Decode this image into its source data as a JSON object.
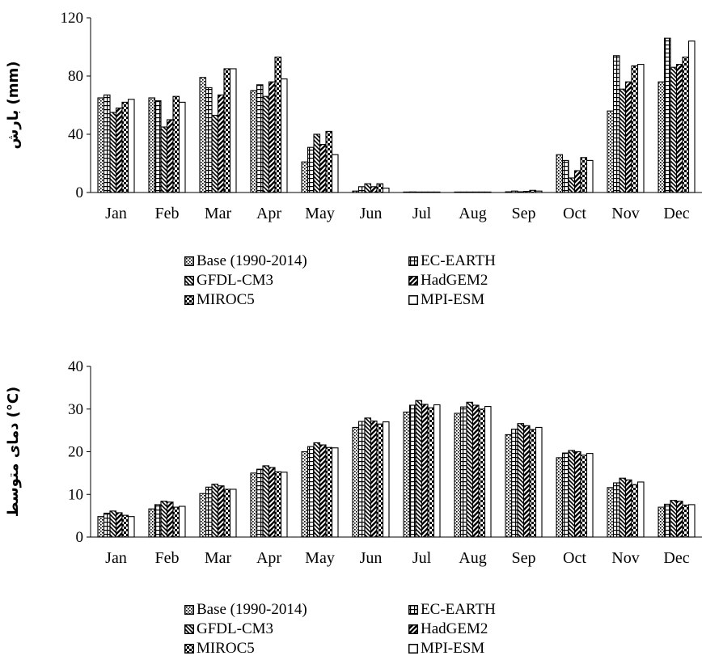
{
  "chart_data": [
    {
      "type": "bar",
      "ylabel": "(mm) بارش",
      "ylim": [
        0,
        120
      ],
      "yticks": [
        "0",
        "40",
        "80",
        "120"
      ],
      "categories": [
        "Jan",
        "Feb",
        "Mar",
        "Apr",
        "May",
        "Jun",
        "Jul",
        "Aug",
        "Sep",
        "Oct",
        "Nov",
        "Dec"
      ],
      "grid": false,
      "legend_position": "bottom",
      "series": [
        {
          "name": "Base (1990-2014)",
          "pattern": "dots",
          "values": [
            65,
            65,
            79,
            70,
            21,
            1,
            0.3,
            0.1,
            0.5,
            26,
            56,
            76
          ]
        },
        {
          "name": "EC-EARTH",
          "pattern": "grid",
          "values": [
            67,
            63,
            72,
            74,
            31,
            4,
            0.4,
            0.2,
            1.0,
            22,
            94,
            106
          ]
        },
        {
          "name": "GFDL-CM3",
          "pattern": "diag-down",
          "values": [
            55,
            45,
            53,
            66,
            40,
            6,
            0.3,
            0.1,
            0.5,
            10,
            71,
            86
          ]
        },
        {
          "name": "HadGEM2",
          "pattern": "diag-up",
          "values": [
            58,
            50,
            67,
            76,
            33,
            4,
            0.3,
            0.1,
            0.8,
            15,
            76,
            88
          ]
        },
        {
          "name": "MIROC5",
          "pattern": "checker",
          "values": [
            62,
            66,
            85,
            93,
            42,
            6,
            0.3,
            0.1,
            1.5,
            24,
            87,
            93
          ]
        },
        {
          "name": "MPI-ESM",
          "pattern": "vlines",
          "values": [
            64,
            62,
            85,
            78,
            26,
            3,
            0.3,
            0.1,
            1.0,
            22,
            88,
            104
          ]
        }
      ]
    },
    {
      "type": "bar",
      "ylabel": "(C°) دمای متوسط",
      "ylim": [
        0,
        40
      ],
      "yticks": [
        "0",
        "10",
        "20",
        "30",
        "40"
      ],
      "categories": [
        "Jan",
        "Feb",
        "Mar",
        "Apr",
        "May",
        "Jun",
        "Jul",
        "Aug",
        "Sep",
        "Oct",
        "Nov",
        "Dec"
      ],
      "grid": false,
      "legend_position": "bottom",
      "series": [
        {
          "name": "Base (1990-2014)",
          "pattern": "dots",
          "values": [
            4.8,
            6.6,
            10.2,
            15.0,
            20.0,
            25.7,
            29.3,
            29.0,
            24.0,
            18.6,
            11.6,
            7.0
          ]
        },
        {
          "name": "EC-EARTH",
          "pattern": "grid",
          "values": [
            5.6,
            7.6,
            11.7,
            15.9,
            21.2,
            27.1,
            30.9,
            30.5,
            25.3,
            19.7,
            12.7,
            7.7
          ]
        },
        {
          "name": "GFDL-CM3",
          "pattern": "diag-down",
          "values": [
            6.1,
            8.4,
            12.4,
            16.7,
            22.1,
            27.9,
            32.0,
            31.6,
            26.6,
            20.3,
            13.8,
            8.6
          ]
        },
        {
          "name": "HadGEM2",
          "pattern": "diag-up",
          "values": [
            5.7,
            8.2,
            12.0,
            16.3,
            21.6,
            27.2,
            31.1,
            30.9,
            26.1,
            20.0,
            13.4,
            8.4
          ]
        },
        {
          "name": "MIROC5",
          "pattern": "checker",
          "values": [
            5.1,
            7.0,
            11.2,
            15.3,
            21.0,
            26.5,
            30.3,
            30.0,
            25.2,
            19.2,
            12.3,
            7.5
          ]
        },
        {
          "name": "MPI-ESM",
          "pattern": "vlines",
          "values": [
            4.8,
            7.2,
            11.2,
            15.2,
            20.9,
            27.0,
            31.0,
            30.6,
            25.7,
            19.6,
            12.9,
            7.6
          ]
        }
      ]
    }
  ]
}
